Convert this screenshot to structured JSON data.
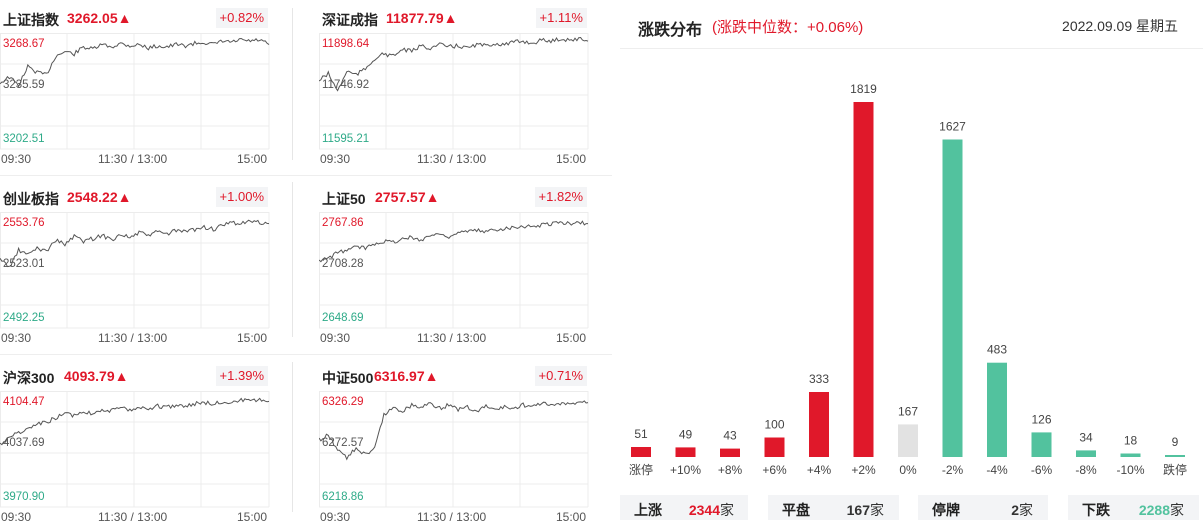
{
  "colors": {
    "up": "#e0182a",
    "down": "#52c29e",
    "flat": "#e2e2e2",
    "line": "#555555"
  },
  "x_axis": {
    "start": "09:30",
    "mid": "11:30 / 13:00",
    "end": "15:00"
  },
  "indices": [
    {
      "name": "上证指数",
      "value": "3262.05",
      "arrow": "▲",
      "change": "+0.82%",
      "high": "3268.67",
      "mid": "3235.59",
      "low": "3202.51",
      "shape": [
        0.43,
        0.38,
        0.45,
        0.29,
        0.34,
        0.36,
        0.2,
        0.16,
        0.18,
        0.12,
        0.14,
        0.1,
        0.12,
        0.09,
        0.11,
        0.1,
        0.13,
        0.11,
        0.12,
        0.1,
        0.11,
        0.09,
        0.08,
        0.1,
        0.07,
        0.08,
        0.06,
        0.07,
        0.06,
        0.1
      ]
    },
    {
      "name": "深证成指",
      "value": "11877.79",
      "arrow": "▲",
      "change": "+1.11%",
      "high": "11898.64",
      "mid": "11746.92",
      "low": "11595.21",
      "shape": [
        0.41,
        0.35,
        0.5,
        0.33,
        0.36,
        0.31,
        0.22,
        0.18,
        0.2,
        0.14,
        0.16,
        0.11,
        0.13,
        0.1,
        0.12,
        0.11,
        0.13,
        0.1,
        0.11,
        0.09,
        0.1,
        0.08,
        0.07,
        0.09,
        0.06,
        0.07,
        0.05,
        0.06,
        0.05,
        0.07
      ]
    },
    {
      "name": "创业板指",
      "value": "2548.22",
      "arrow": "▲",
      "change": "+1.00%",
      "high": "2553.76",
      "mid": "2523.01",
      "low": "2492.25",
      "shape": [
        0.4,
        0.48,
        0.33,
        0.37,
        0.31,
        0.34,
        0.24,
        0.28,
        0.21,
        0.25,
        0.23,
        0.2,
        0.24,
        0.19,
        0.22,
        0.18,
        0.2,
        0.17,
        0.19,
        0.16,
        0.17,
        0.15,
        0.13,
        0.15,
        0.12,
        0.09,
        0.1,
        0.08,
        0.09,
        0.1
      ]
    },
    {
      "name": "上证50",
      "value": "2757.57",
      "arrow": "▲",
      "change": "+1.82%",
      "high": "2767.86",
      "mid": "2708.28",
      "low": "2648.69",
      "shape": [
        0.42,
        0.4,
        0.35,
        0.33,
        0.3,
        0.31,
        0.27,
        0.25,
        0.26,
        0.23,
        0.22,
        0.24,
        0.2,
        0.19,
        0.21,
        0.18,
        0.17,
        0.16,
        0.17,
        0.15,
        0.14,
        0.13,
        0.12,
        0.13,
        0.11,
        0.1,
        0.09,
        0.1,
        0.09,
        0.1
      ]
    },
    {
      "name": "沪深300",
      "value": "4093.79",
      "arrow": "▲",
      "change": "+1.39%",
      "high": "4104.47",
      "mid": "4037.69",
      "low": "3970.90",
      "shape": [
        0.46,
        0.4,
        0.36,
        0.33,
        0.29,
        0.27,
        0.23,
        0.2,
        0.21,
        0.18,
        0.19,
        0.16,
        0.17,
        0.15,
        0.16,
        0.14,
        0.15,
        0.13,
        0.14,
        0.12,
        0.13,
        0.11,
        0.1,
        0.11,
        0.09,
        0.1,
        0.08,
        0.09,
        0.08,
        0.09
      ]
    },
    {
      "name": "中证500",
      "value": "6316.97",
      "arrow": "▲",
      "change": "+0.71%",
      "high": "6326.29",
      "mid": "6272.57",
      "low": "6218.86",
      "shape": [
        0.42,
        0.38,
        0.5,
        0.58,
        0.49,
        0.55,
        0.5,
        0.2,
        0.15,
        0.17,
        0.12,
        0.14,
        0.1,
        0.15,
        0.12,
        0.16,
        0.14,
        0.18,
        0.13,
        0.16,
        0.14,
        0.15,
        0.12,
        0.14,
        0.1,
        0.13,
        0.11,
        0.12,
        0.09,
        0.1
      ]
    }
  ],
  "distribution": {
    "title": "涨跌分布",
    "median_text": "(涨跌中位数：+0.06%)",
    "date": "2022.09.09",
    "weekday": "星期五",
    "summary": [
      {
        "label": "上涨",
        "count": "2344",
        "unit": "家",
        "color": "#e0182a"
      },
      {
        "label": "平盘",
        "count": "167",
        "unit": "家",
        "color": "#333333"
      },
      {
        "label": "停牌",
        "count": "2",
        "unit": "家",
        "color": "#333333"
      },
      {
        "label": "下跌",
        "count": "2288",
        "unit": "家",
        "color": "#52c29e"
      }
    ]
  },
  "chart_data": {
    "type": "bar",
    "categories": [
      "涨停",
      "+10%",
      "+8%",
      "+6%",
      "+4%",
      "+2%",
      "0%",
      "-2%",
      "-4%",
      "-6%",
      "-8%",
      "-10%",
      "跌停"
    ],
    "values": [
      51,
      49,
      43,
      100,
      333,
      1819,
      167,
      1627,
      483,
      126,
      34,
      18,
      9
    ],
    "bar_colors": [
      "#e0182a",
      "#e0182a",
      "#e0182a",
      "#e0182a",
      "#e0182a",
      "#e0182a",
      "#e2e2e2",
      "#52c29e",
      "#52c29e",
      "#52c29e",
      "#52c29e",
      "#52c29e",
      "#52c29e"
    ],
    "ylim": [
      0,
      1819
    ],
    "grid": false,
    "xlabel": "",
    "ylabel": ""
  }
}
